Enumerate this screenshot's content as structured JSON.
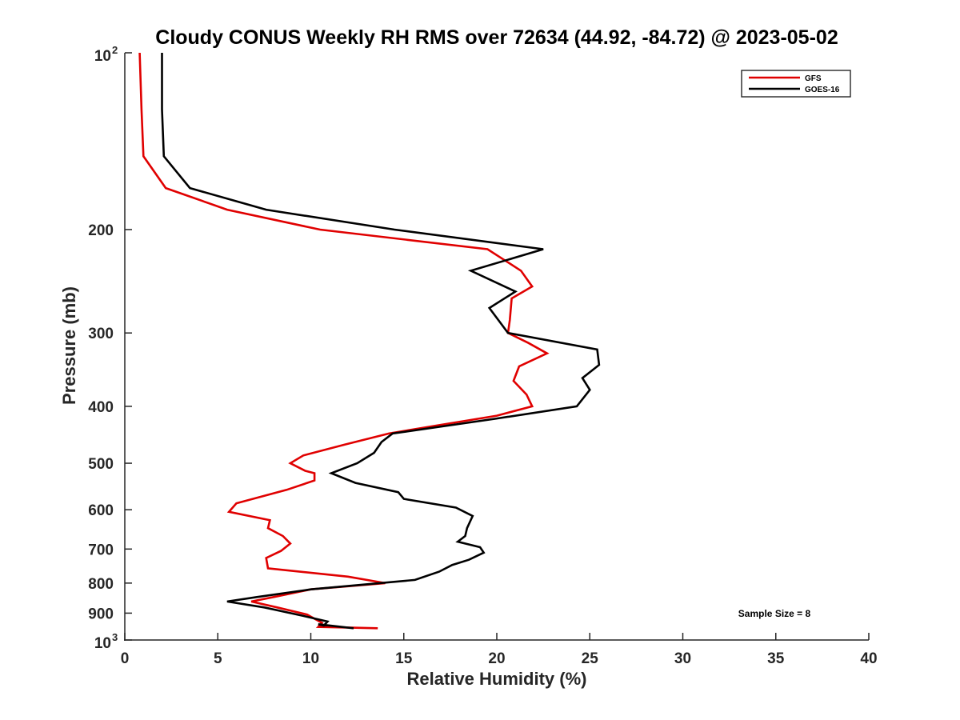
{
  "chart_data": {
    "type": "line",
    "title": "Cloudy CONUS Weekly RH RMS over 72634 (44.92, -84.72) @ 2023-05-02",
    "xlabel": "Relative Humidity (%)",
    "ylabel": "Pressure (mb)",
    "xlim": [
      0,
      40
    ],
    "ylim": [
      100,
      1000
    ],
    "y_scale": "log",
    "y_reversed": true,
    "x_ticks": [
      0,
      5,
      10,
      15,
      20,
      25,
      30,
      35,
      40
    ],
    "y_ticks": [
      {
        "value": 100,
        "label": "10",
        "sup": "2"
      },
      {
        "value": 200,
        "label": "200",
        "sup": ""
      },
      {
        "value": 300,
        "label": "300",
        "sup": ""
      },
      {
        "value": 400,
        "label": "400",
        "sup": ""
      },
      {
        "value": 500,
        "label": "500",
        "sup": ""
      },
      {
        "value": 600,
        "label": "600",
        "sup": ""
      },
      {
        "value": 700,
        "label": "700",
        "sup": ""
      },
      {
        "value": 800,
        "label": "800",
        "sup": ""
      },
      {
        "value": 900,
        "label": "900",
        "sup": ""
      },
      {
        "value": 1000,
        "label": "10",
        "sup": "3"
      }
    ],
    "legend_position": "top-right",
    "series": [
      {
        "name": "GFS",
        "color": "#e00000",
        "points": [
          [
            0.8,
            100
          ],
          [
            0.9,
            125
          ],
          [
            1.0,
            150
          ],
          [
            2.2,
            170
          ],
          [
            5.5,
            185
          ],
          [
            10.5,
            200
          ],
          [
            19.5,
            216
          ],
          [
            21.3,
            235
          ],
          [
            21.9,
            250
          ],
          [
            20.8,
            262
          ],
          [
            20.7,
            285
          ],
          [
            20.6,
            300
          ],
          [
            21.7,
            312
          ],
          [
            22.7,
            325
          ],
          [
            21.2,
            342
          ],
          [
            20.9,
            362
          ],
          [
            21.6,
            382
          ],
          [
            21.9,
            400
          ],
          [
            20.0,
            415
          ],
          [
            17.0,
            430
          ],
          [
            14.2,
            445
          ],
          [
            11.8,
            465
          ],
          [
            9.6,
            485
          ],
          [
            8.9,
            500
          ],
          [
            9.7,
            515
          ],
          [
            10.2,
            520
          ],
          [
            10.2,
            535
          ],
          [
            8.7,
            555
          ],
          [
            6.0,
            585
          ],
          [
            5.6,
            605
          ],
          [
            7.8,
            625
          ],
          [
            7.7,
            645
          ],
          [
            8.5,
            665
          ],
          [
            8.9,
            685
          ],
          [
            8.4,
            705
          ],
          [
            7.6,
            725
          ],
          [
            7.7,
            755
          ],
          [
            12.0,
            780
          ],
          [
            14.0,
            800
          ],
          [
            10.0,
            820
          ],
          [
            8.0,
            845
          ],
          [
            6.8,
            860
          ],
          [
            8.2,
            880
          ],
          [
            9.8,
            905
          ],
          [
            10.6,
            935
          ],
          [
            10.4,
            950
          ],
          [
            13.6,
            955
          ]
        ]
      },
      {
        "name": "GOES-16",
        "color": "#000000",
        "points": [
          [
            2.0,
            100
          ],
          [
            2.0,
            125
          ],
          [
            2.1,
            150
          ],
          [
            3.5,
            170
          ],
          [
            7.6,
            185
          ],
          [
            14.5,
            200
          ],
          [
            22.5,
            216
          ],
          [
            18.6,
            235
          ],
          [
            21.0,
            255
          ],
          [
            19.6,
            272
          ],
          [
            20.6,
            300
          ],
          [
            25.4,
            320
          ],
          [
            25.5,
            340
          ],
          [
            24.6,
            358
          ],
          [
            25.0,
            375
          ],
          [
            24.3,
            400
          ],
          [
            19.9,
            420
          ],
          [
            14.4,
            445
          ],
          [
            13.8,
            460
          ],
          [
            13.4,
            480
          ],
          [
            12.5,
            500
          ],
          [
            11.1,
            520
          ],
          [
            12.4,
            540
          ],
          [
            14.7,
            560
          ],
          [
            15.0,
            575
          ],
          [
            17.8,
            595
          ],
          [
            18.7,
            615
          ],
          [
            18.4,
            645
          ],
          [
            18.3,
            665
          ],
          [
            17.9,
            680
          ],
          [
            19.1,
            695
          ],
          [
            19.3,
            710
          ],
          [
            18.5,
            730
          ],
          [
            17.6,
            745
          ],
          [
            16.9,
            765
          ],
          [
            15.6,
            790
          ],
          [
            10.0,
            820
          ],
          [
            7.1,
            845
          ],
          [
            5.5,
            860
          ],
          [
            7.5,
            880
          ],
          [
            9.6,
            910
          ],
          [
            10.9,
            930
          ],
          [
            10.7,
            945
          ],
          [
            10.4,
            940
          ],
          [
            12.3,
            955
          ]
        ]
      }
    ],
    "annotations": [
      "Sample Size = 8"
    ]
  }
}
